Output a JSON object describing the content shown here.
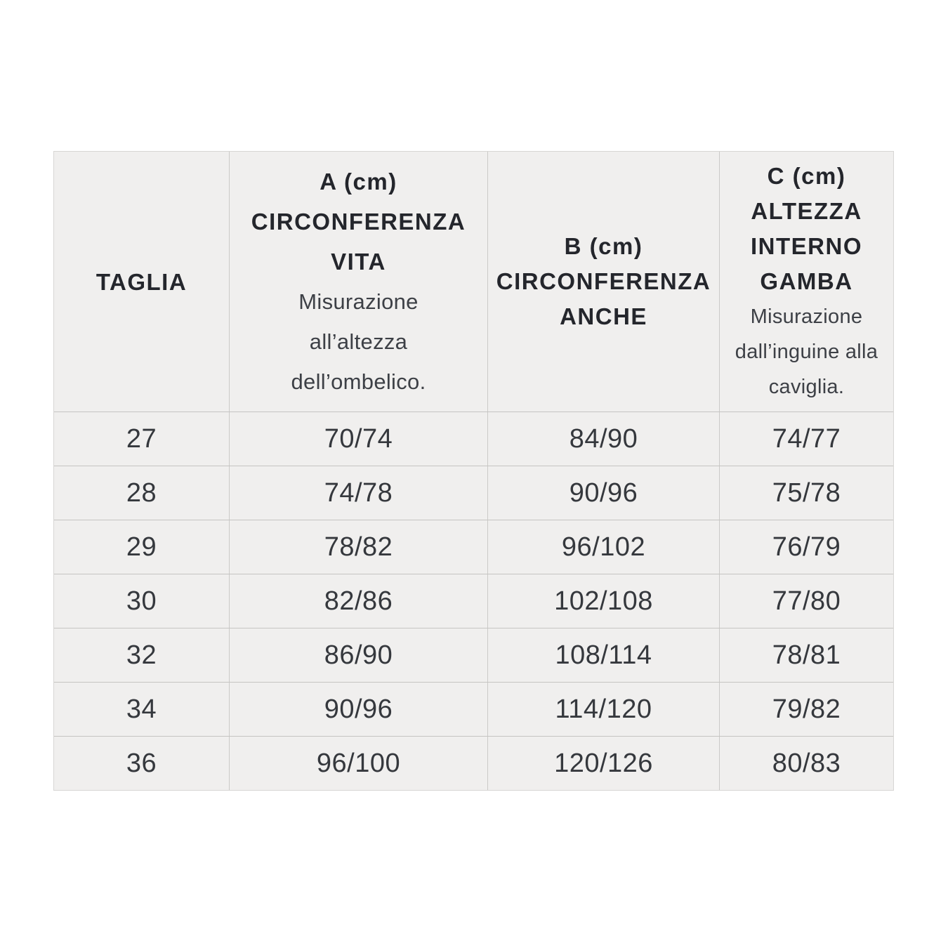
{
  "colors": {
    "page_background": "#ffffff",
    "cell_background": "#f0efee",
    "grid_line": "#c9c8c6",
    "header_text": "#24262c",
    "note_text": "#3d4046",
    "data_text": "#35383d"
  },
  "table": {
    "headers": {
      "taglia": {
        "title": "TAGLIA"
      },
      "a": {
        "bold": [
          "A (cm)",
          "CIRCONFERENZA",
          "VITA"
        ],
        "notes": [
          "Misurazione",
          "all’altezza",
          "dell’ombelico."
        ]
      },
      "b": {
        "bold": [
          "B (cm)",
          "CIRCONFERENZA",
          "ANCHE"
        ],
        "notes": []
      },
      "c": {
        "bold": [
          "C (cm)",
          "ALTEZZA",
          "INTERNO",
          "GAMBA"
        ],
        "notes": [
          "Misurazione",
          "dall’inguine alla",
          "caviglia."
        ]
      }
    },
    "rows": [
      {
        "size": "27",
        "a": "70/74",
        "b": "84/90",
        "c": "74/77"
      },
      {
        "size": "28",
        "a": "74/78",
        "b": "90/96",
        "c": "75/78"
      },
      {
        "size": "29",
        "a": "78/82",
        "b": "96/102",
        "c": "76/79"
      },
      {
        "size": "30",
        "a": "82/86",
        "b": "102/108",
        "c": "77/80"
      },
      {
        "size": "32",
        "a": "86/90",
        "b": "108/114",
        "c": "78/81"
      },
      {
        "size": "34",
        "a": "90/96",
        "b": "114/120",
        "c": "79/82"
      },
      {
        "size": "36",
        "a": "96/100",
        "b": "120/126",
        "c": "80/83"
      }
    ]
  }
}
